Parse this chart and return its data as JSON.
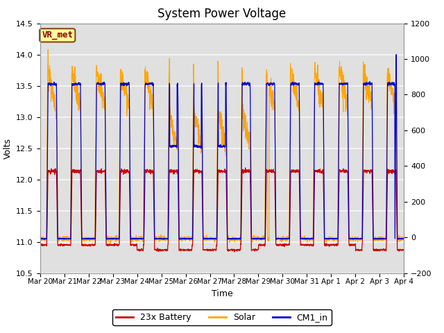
{
  "title": "System Power Voltage",
  "ylabel_left": "Volts",
  "ylabel_right": "",
  "xlabel": "Time",
  "ylim_left": [
    10.5,
    14.5
  ],
  "ylim_right": [
    -200,
    1200
  ],
  "yticks_left": [
    10.5,
    11.0,
    11.5,
    12.0,
    12.5,
    13.0,
    13.5,
    14.0,
    14.5
  ],
  "yticks_right": [
    -200,
    0,
    200,
    400,
    600,
    800,
    1000,
    1200
  ],
  "x_labels": [
    "Mar 20",
    "Mar 21",
    "Mar 22",
    "Mar 23",
    "Mar 24",
    "Mar 25",
    "Mar 26",
    "Mar 27",
    "Mar 28",
    "Mar 29",
    "Mar 30",
    "Mar 31",
    "Apr 1",
    "Apr 2",
    "Apr 3",
    "Apr 4"
  ],
  "annotation_text": "VR_met",
  "annotation_color": "#8B0000",
  "annotation_bg": "#FFFF99",
  "annotation_border": "#8B4513",
  "battery_color": "#CC0000",
  "solar_color": "#FFA500",
  "cm1_color": "#0000CC",
  "legend_labels": [
    "23x Battery",
    "Solar",
    "CM1_in"
  ],
  "background_color": "#E0E0E0",
  "grid_color": "#F8F8F8",
  "title_fontsize": 12,
  "label_fontsize": 9,
  "tick_fontsize": 8
}
